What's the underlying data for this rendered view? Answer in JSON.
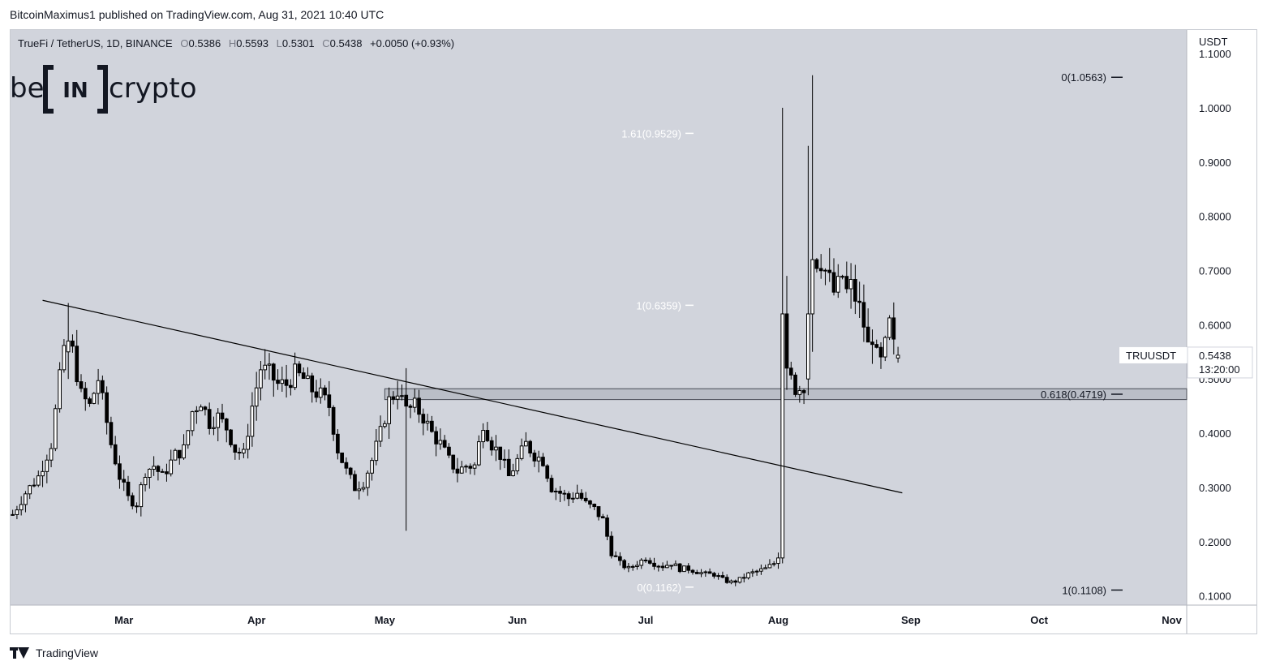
{
  "header": {
    "published_by": "BitcoinMaximus1 published on TradingView.com, Aug 31, 2021 10:40 UTC"
  },
  "footer": {
    "brand": "TradingView"
  },
  "watermark": {
    "text_left": "be",
    "text_box": "IN",
    "text_right": "crypto"
  },
  "symbol_info": {
    "name": "TrueFi / TetherUS, 1D, BINANCE",
    "o_label": "O",
    "o_value": "0.5386",
    "h_label": "H",
    "h_value": "0.5593",
    "l_label": "L",
    "l_value": "0.5301",
    "c_label": "C",
    "c_value": "0.5438",
    "change": "+0.0050 (+0.93%)"
  },
  "price_label": {
    "ticker": "TRUUSDT",
    "price": "0.5438",
    "countdown": "13:20:00"
  },
  "colors": {
    "plot_bg": "#d1d4dc",
    "candle_up": "#ffffff",
    "candle_down": "#000000",
    "wick": "#000000",
    "text": "#131722"
  },
  "chart_data": {
    "type": "candlestick",
    "title": "TrueFi / TetherUS, 1D, BINANCE",
    "ylabel": "USDT",
    "ylim": [
      0.098,
      1.115
    ],
    "y_ticks": [
      "0.1000",
      "0.2000",
      "0.3000",
      "0.4000",
      "0.5000",
      "0.6000",
      "0.7000",
      "0.8000",
      "0.9000",
      "1.0000",
      "1.1000"
    ],
    "x_ticks": [
      {
        "label": "Mar",
        "day": 26
      },
      {
        "label": "Apr",
        "day": 57
      },
      {
        "label": "May",
        "day": 87
      },
      {
        "label": "Jun",
        "day": 118
      },
      {
        "label": "Jul",
        "day": 148
      },
      {
        "label": "Aug",
        "day": 179
      },
      {
        "label": "Sep",
        "day": 210
      },
      {
        "label": "Oct",
        "day": 240
      },
      {
        "label": "Nov",
        "day": 271
      }
    ],
    "x_range_days": [
      -0.5,
      274.5
    ],
    "series_points": [
      [
        0,
        0.25
      ],
      [
        3,
        0.29
      ],
      [
        6,
        0.32
      ],
      [
        9,
        0.38
      ],
      [
        11,
        0.5
      ],
      [
        12,
        0.56
      ],
      [
        14,
        0.55
      ],
      [
        16,
        0.47
      ],
      [
        18,
        0.45
      ],
      [
        20,
        0.5
      ],
      [
        23,
        0.38
      ],
      [
        25,
        0.32
      ],
      [
        27,
        0.28
      ],
      [
        29,
        0.27
      ],
      [
        31,
        0.33
      ],
      [
        33,
        0.34
      ],
      [
        35,
        0.32
      ],
      [
        38,
        0.36
      ],
      [
        40,
        0.37
      ],
      [
        42,
        0.44
      ],
      [
        44,
        0.46
      ],
      [
        46,
        0.42
      ],
      [
        48,
        0.43
      ],
      [
        50,
        0.41
      ],
      [
        52,
        0.37
      ],
      [
        54,
        0.36
      ],
      [
        56,
        0.45
      ],
      [
        58,
        0.52
      ],
      [
        60,
        0.51
      ],
      [
        62,
        0.49
      ],
      [
        64,
        0.49
      ],
      [
        66,
        0.51
      ],
      [
        68,
        0.5
      ],
      [
        70,
        0.48
      ],
      [
        72,
        0.47
      ],
      [
        74,
        0.45
      ],
      [
        76,
        0.37
      ],
      [
        78,
        0.33
      ],
      [
        80,
        0.3
      ],
      [
        82,
        0.31
      ],
      [
        84,
        0.35
      ],
      [
        86,
        0.4
      ],
      [
        88,
        0.46
      ],
      [
        90,
        0.48
      ],
      [
        92,
        0.44
      ],
      [
        94,
        0.45
      ],
      [
        96,
        0.43
      ],
      [
        98,
        0.4
      ],
      [
        100,
        0.38
      ],
      [
        102,
        0.35
      ],
      [
        104,
        0.33
      ],
      [
        106,
        0.34
      ],
      [
        108,
        0.34
      ],
      [
        110,
        0.42
      ],
      [
        112,
        0.38
      ],
      [
        114,
        0.36
      ],
      [
        116,
        0.32
      ],
      [
        118,
        0.35
      ],
      [
        120,
        0.38
      ],
      [
        122,
        0.36
      ],
      [
        124,
        0.35
      ],
      [
        126,
        0.3
      ],
      [
        128,
        0.29
      ],
      [
        130,
        0.28
      ],
      [
        132,
        0.29
      ],
      [
        134,
        0.27
      ],
      [
        136,
        0.26
      ],
      [
        138,
        0.24
      ],
      [
        140,
        0.18
      ],
      [
        142,
        0.16
      ],
      [
        144,
        0.15
      ],
      [
        146,
        0.16
      ],
      [
        148,
        0.17
      ],
      [
        150,
        0.16
      ],
      [
        152,
        0.155
      ],
      [
        154,
        0.16
      ],
      [
        156,
        0.15
      ],
      [
        158,
        0.15
      ],
      [
        160,
        0.145
      ],
      [
        162,
        0.14
      ],
      [
        164,
        0.14
      ],
      [
        166,
        0.13
      ],
      [
        168,
        0.125
      ],
      [
        170,
        0.13
      ],
      [
        172,
        0.14
      ],
      [
        174,
        0.145
      ],
      [
        176,
        0.15
      ],
      [
        178,
        0.16
      ],
      [
        179,
        0.17
      ],
      [
        180,
        0.5
      ],
      [
        181,
        0.62
      ],
      [
        182,
        0.52
      ],
      [
        183,
        0.48
      ],
      [
        184,
        0.49
      ],
      [
        185,
        0.48
      ],
      [
        186,
        0.5
      ],
      [
        187,
        0.62
      ],
      [
        188,
        0.72
      ],
      [
        189,
        0.72
      ],
      [
        190,
        0.7
      ],
      [
        191,
        0.68
      ],
      [
        192,
        0.66
      ],
      [
        193,
        0.67
      ],
      [
        194,
        0.69
      ],
      [
        195,
        0.66
      ],
      [
        196,
        0.67
      ],
      [
        197,
        0.65
      ],
      [
        198,
        0.63
      ],
      [
        199,
        0.6
      ],
      [
        200,
        0.56
      ],
      [
        201,
        0.58
      ],
      [
        202,
        0.54
      ],
      [
        203,
        0.53
      ],
      [
        204,
        0.56
      ],
      [
        205,
        0.6
      ],
      [
        206,
        0.56
      ],
      [
        207,
        0.545
      ]
    ],
    "special_candles": [
      {
        "day": 13,
        "o": 0.55,
        "h": 0.64,
        "l": 0.5,
        "c": 0.57
      },
      {
        "day": 92,
        "o": 0.47,
        "h": 0.52,
        "l": 0.22,
        "c": 0.45
      },
      {
        "day": 179,
        "o": 0.16,
        "h": 0.18,
        "l": 0.15,
        "c": 0.17
      },
      {
        "day": 180,
        "o": 0.17,
        "h": 1.0,
        "l": 0.16,
        "c": 0.62
      },
      {
        "day": 181,
        "o": 0.62,
        "h": 0.69,
        "l": 0.48,
        "c": 0.52
      },
      {
        "day": 186,
        "o": 0.5,
        "h": 0.93,
        "l": 0.47,
        "c": 0.62
      },
      {
        "day": 187,
        "o": 0.62,
        "h": 1.06,
        "l": 0.55,
        "c": 0.72
      },
      {
        "day": 207,
        "o": 0.5386,
        "h": 0.5593,
        "l": 0.5301,
        "c": 0.5438
      }
    ],
    "trendline": {
      "x1": 7,
      "y1": 0.645,
      "x2": 208,
      "y2": 0.29
    },
    "support_zone": {
      "x_start": 87,
      "y_low": 0.462,
      "y_high": 0.482
    },
    "fib_levels_left": [
      {
        "label": "1.61(0.9529)",
        "value": 0.9529
      },
      {
        "label": "1(0.6359)",
        "value": 0.6359
      },
      {
        "label": "0(0.1162)",
        "value": 0.1162
      }
    ],
    "fib_levels_right": [
      {
        "label": "0(1.0563)",
        "value": 1.0563
      },
      {
        "label": "0.618(0.4719)",
        "value": 0.4719
      },
      {
        "label": "1(0.1108)",
        "value": 0.1108
      }
    ],
    "last_price": 0.5438
  }
}
